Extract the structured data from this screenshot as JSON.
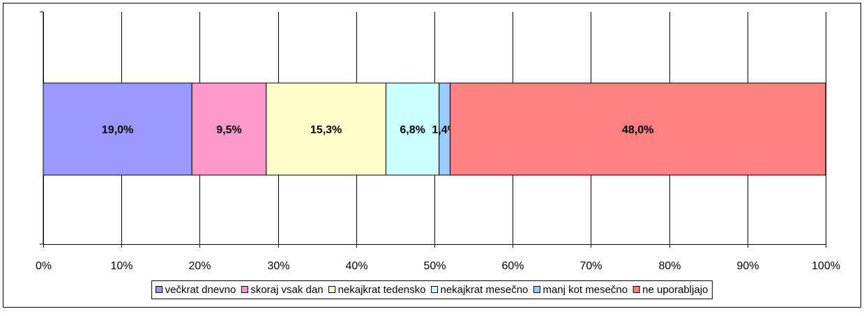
{
  "chart_data": {
    "type": "bar",
    "orientation": "horizontal",
    "stacked": true,
    "series": [
      {
        "name": "večkrat dnevno",
        "color": "#9999ff",
        "values": [
          19.0
        ],
        "value_labels": [
          "19,0%"
        ]
      },
      {
        "name": "skoraj vsak dan",
        "color": "#ff99cc",
        "values": [
          9.5
        ],
        "value_labels": [
          "9,5%"
        ]
      },
      {
        "name": "nekajkrat tedensko",
        "color": "#ffffcc",
        "values": [
          15.3
        ],
        "value_labels": [
          "15,3%"
        ]
      },
      {
        "name": "nekajkrat mesečno",
        "color": "#ccffff",
        "values": [
          6.8
        ],
        "value_labels": [
          "6,8%"
        ]
      },
      {
        "name": "manj kot mesečno",
        "color": "#99ccff",
        "values": [
          1.4
        ],
        "value_labels": [
          "1,4%"
        ]
      },
      {
        "name": "ne uporabljajo",
        "color": "#ff8080",
        "values": [
          48.0
        ],
        "value_labels": [
          "48,0%"
        ]
      }
    ],
    "xlim": [
      0,
      100
    ],
    "xticks": [
      {
        "value": 0,
        "label": "0%"
      },
      {
        "value": 10,
        "label": "10%"
      },
      {
        "value": 20,
        "label": "20%"
      },
      {
        "value": 30,
        "label": "30%"
      },
      {
        "value": 40,
        "label": "40%"
      },
      {
        "value": 50,
        "label": "50%"
      },
      {
        "value": 60,
        "label": "60%"
      },
      {
        "value": 70,
        "label": "70%"
      },
      {
        "value": 80,
        "label": "80%"
      },
      {
        "value": 90,
        "label": "90%"
      },
      {
        "value": 100,
        "label": "100%"
      }
    ],
    "grid": true,
    "legend": "bottom"
  }
}
